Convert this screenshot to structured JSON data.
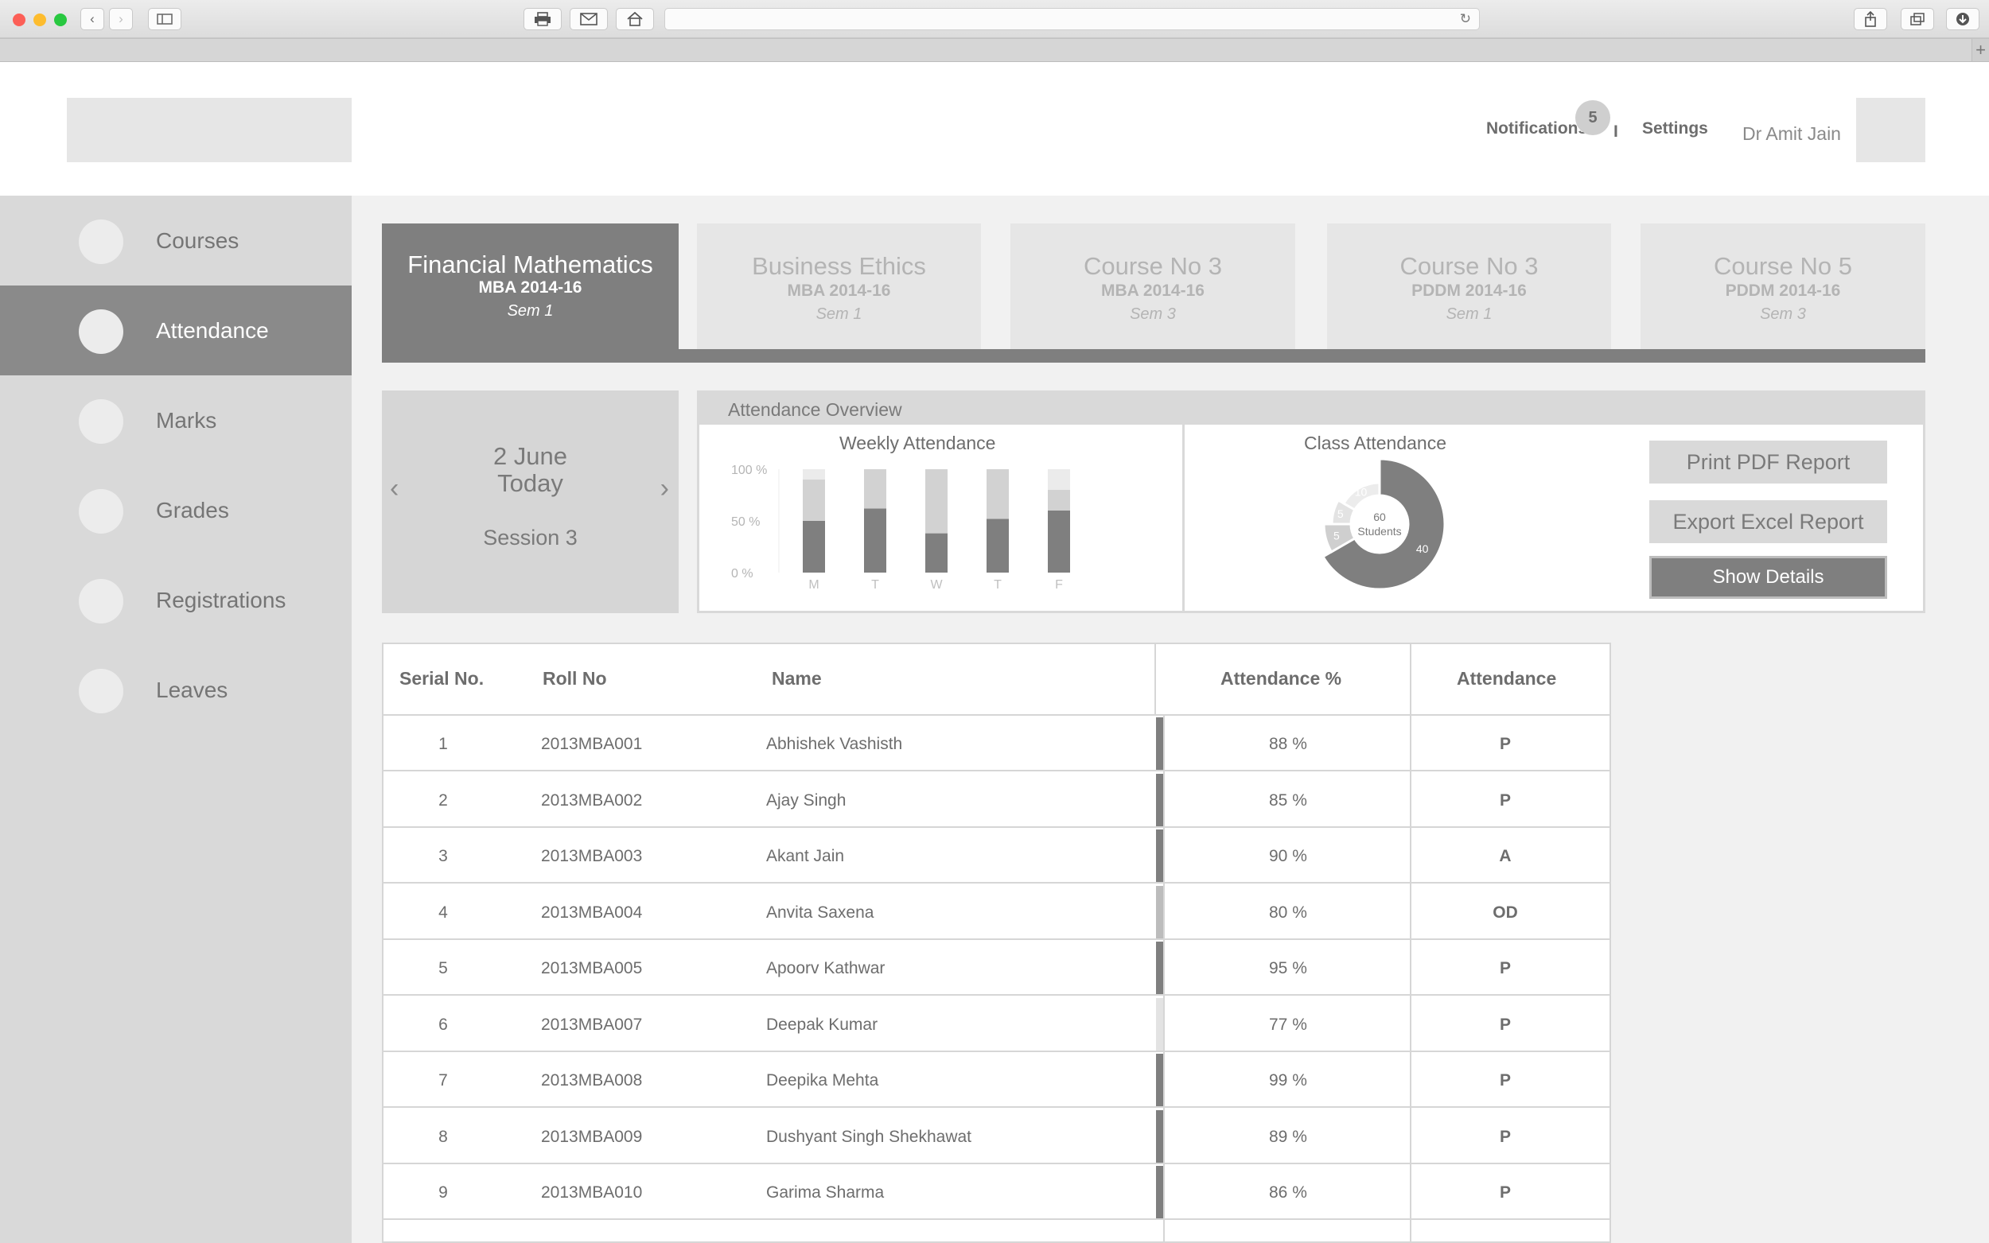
{
  "header": {
    "notifications_label": "Notifications",
    "notifications_count": "5",
    "separator": "I",
    "settings_label": "Settings",
    "user_name": "Dr Amit Jain"
  },
  "sidebar": {
    "items": [
      {
        "label": "Courses"
      },
      {
        "label": "Attendance"
      },
      {
        "label": "Marks"
      },
      {
        "label": "Grades"
      },
      {
        "label": "Registrations"
      },
      {
        "label": "Leaves"
      }
    ],
    "active_index": 1
  },
  "courses": [
    {
      "title": "Financial Mathematics",
      "batch": "MBA 2014-16",
      "sem": "Sem 1"
    },
    {
      "title": "Business Ethics",
      "batch": "MBA 2014-16",
      "sem": "Sem 1"
    },
    {
      "title": "Course No 3",
      "batch": "MBA 2014-16",
      "sem": "Sem 3"
    },
    {
      "title": "Course No 3",
      "batch": "PDDM 2014-16",
      "sem": "Sem 1"
    },
    {
      "title": "Course No 5",
      "batch": "PDDM 2014-16",
      "sem": "Sem 3"
    }
  ],
  "session": {
    "date": "2 June",
    "day": "Today",
    "session": "Session 3",
    "prev_icon": "chevron-left-icon",
    "next_icon": "chevron-right-icon"
  },
  "overview": {
    "title": "Attendance Overview",
    "buttons": {
      "print_pdf": "Print PDF Report",
      "export_excel": "Export Excel Report",
      "show_details": "Show Details"
    }
  },
  "chart_data": [
    {
      "type": "bar",
      "title": "Weekly Attendance",
      "categories": [
        "M",
        "T",
        "W",
        "T",
        "F"
      ],
      "y_ticks": [
        "100 %",
        "50 %",
        "0 %"
      ],
      "ylim": [
        0,
        100
      ],
      "series": [
        {
          "values": [
            50,
            62,
            38,
            52,
            60
          ]
        },
        {
          "values": [
            40,
            38,
            62,
            48,
            20
          ]
        },
        {
          "values": [
            10,
            0,
            0,
            0,
            20
          ]
        }
      ]
    },
    {
      "type": "pie",
      "title": "Class Attendance",
      "center_value": "60",
      "center_label": "Students",
      "slices": [
        {
          "label": "40",
          "value": 40
        },
        {
          "label": "5",
          "value": 5
        },
        {
          "label": "5",
          "value": 5
        },
        {
          "label": "10",
          "value": 10
        }
      ]
    }
  ],
  "table": {
    "columns": [
      "Serial No.",
      "Roll No",
      "Name",
      "Attendance %",
      "Attendance"
    ],
    "rows": [
      {
        "serial": "1",
        "roll": "2013MBA001",
        "name": "Abhishek Vashisth",
        "pct": "88 %",
        "att": "P",
        "level": "dark"
      },
      {
        "serial": "2",
        "roll": "2013MBA002",
        "name": "Ajay Singh",
        "pct": "85 %",
        "att": "P",
        "level": "dark"
      },
      {
        "serial": "3",
        "roll": "2013MBA003",
        "name": "Akant Jain",
        "pct": "90 %",
        "att": "A",
        "level": "dark"
      },
      {
        "serial": "4",
        "roll": "2013MBA004",
        "name": "Anvita Saxena",
        "pct": "80 %",
        "att": "OD",
        "level": "mid"
      },
      {
        "serial": "5",
        "roll": "2013MBA005",
        "name": "Apoorv Kathwar",
        "pct": "95 %",
        "att": "P",
        "level": "dark"
      },
      {
        "serial": "6",
        "roll": "2013MBA007",
        "name": "Deepak Kumar",
        "pct": "77 %",
        "att": "P",
        "level": "light"
      },
      {
        "serial": "7",
        "roll": "2013MBA008",
        "name": "Deepika Mehta",
        "pct": "99 %",
        "att": "P",
        "level": "dark"
      },
      {
        "serial": "8",
        "roll": "2013MBA009",
        "name": "Dushyant Singh Shekhawat",
        "pct": "89 %",
        "att": "P",
        "level": "dark"
      },
      {
        "serial": "9",
        "roll": "2013MBA010",
        "name": "Garima Sharma",
        "pct": "86 %",
        "att": "P",
        "level": "dark"
      }
    ]
  },
  "colors": {
    "dark_bar": "#7f7f7f",
    "mid_bar": "#bcbcbc",
    "light_bar": "#e3e3e3"
  }
}
